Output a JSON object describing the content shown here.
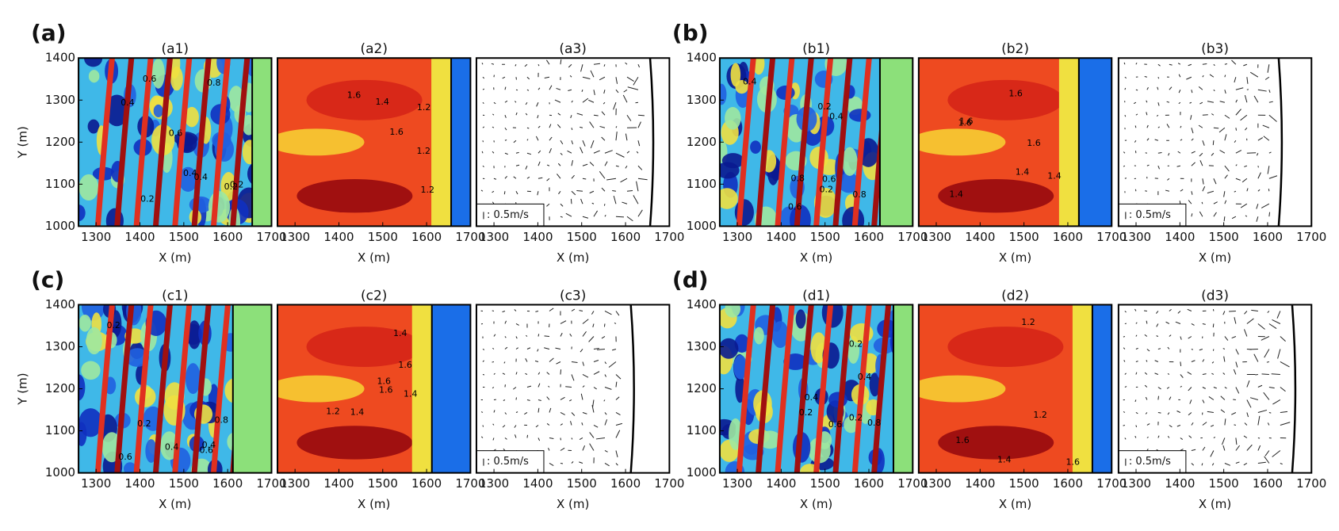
{
  "chart_data": [
    {
      "type": "heatmap",
      "group_label": "(a)",
      "title": "(a1)",
      "xlabel": "X (m)",
      "ylabel": "Y (m)",
      "xlim": [
        1260,
        1700
      ],
      "ylim": [
        1000,
        1400
      ],
      "xticks": [
        1300,
        1400,
        1500,
        1600,
        1700
      ],
      "yticks": [
        1000,
        1100,
        1200,
        1300,
        1400
      ],
      "contour_labels": [
        "0.6",
        "0.2",
        "0.4",
        "0.2",
        "0.4",
        "0.8",
        "0.2",
        "0.4",
        "0.6"
      ]
    },
    {
      "type": "heatmap2",
      "title": "(a2)",
      "xlabel": "X (m)",
      "xlim": [
        1260,
        1700
      ],
      "ylim": [
        1000,
        1400
      ],
      "xticks": [
        1300,
        1400,
        1500,
        1600,
        1700
      ],
      "contour_labels": [
        "1.2",
        "1.2",
        "1.6",
        "1.6",
        "1.4",
        "1.2"
      ]
    },
    {
      "type": "quiver",
      "title": "(a3)",
      "xlabel": "X (m)",
      "xlim": [
        1260,
        1700
      ],
      "ylim": [
        1000,
        1400
      ],
      "xticks": [
        1300,
        1400,
        1500,
        1600,
        1700
      ],
      "scale_label": ": 0.5m/s"
    },
    {
      "type": "heatmap",
      "group_label": "(b)",
      "title": "(b1)",
      "xlabel": "X (m)",
      "xlim": [
        1260,
        1700
      ],
      "ylim": [
        1000,
        1400
      ],
      "xticks": [
        1300,
        1400,
        1500,
        1600,
        1700
      ],
      "yticks": [
        1000,
        1100,
        1200,
        1300,
        1400
      ],
      "contour_labels": [
        "0.8",
        "0.2",
        "0.4",
        "0.6",
        "0.2",
        "0.8",
        "0.4",
        "0.6"
      ]
    },
    {
      "type": "heatmap2",
      "title": "(b2)",
      "xlabel": "X (m)",
      "xlim": [
        1260,
        1700
      ],
      "ylim": [
        1000,
        1400
      ],
      "xticks": [
        1300,
        1400,
        1500,
        1600,
        1700
      ],
      "contour_labels": [
        "1.6",
        "1.4",
        "1.6",
        "1.4",
        "1.6",
        "1.4",
        "1.6"
      ]
    },
    {
      "type": "quiver",
      "title": "(b3)",
      "xlabel": "X (m)",
      "xlim": [
        1260,
        1700
      ],
      "ylim": [
        1000,
        1400
      ],
      "xticks": [
        1300,
        1400,
        1500,
        1600,
        1700
      ],
      "scale_label": ": 0.5m/s"
    },
    {
      "type": "heatmap",
      "group_label": "(c)",
      "title": "(c1)",
      "xlabel": "X (m)",
      "ylabel": "Y (m)",
      "xlim": [
        1260,
        1700
      ],
      "ylim": [
        1000,
        1400
      ],
      "xticks": [
        1300,
        1400,
        1500,
        1600,
        1700
      ],
      "yticks": [
        1000,
        1100,
        1200,
        1300,
        1400
      ],
      "contour_labels": [
        "0.2",
        "0.6",
        "0.4",
        "0.2",
        "0.8",
        "0.6",
        "0.4"
      ]
    },
    {
      "type": "heatmap2",
      "title": "(c2)",
      "xlabel": "X (m)",
      "xlim": [
        1260,
        1700
      ],
      "ylim": [
        1000,
        1400
      ],
      "xticks": [
        1300,
        1400,
        1500,
        1600,
        1700
      ],
      "contour_labels": [
        "1.4",
        "1.4",
        "1.6",
        "1.4",
        "1.6",
        "1.2",
        "1.6"
      ]
    },
    {
      "type": "quiver",
      "title": "(c3)",
      "xlabel": "X (m)",
      "xlim": [
        1260,
        1700
      ],
      "ylim": [
        1000,
        1400
      ],
      "xticks": [
        1300,
        1400,
        1500,
        1600,
        1700
      ],
      "scale_label": ": 0.5m/s"
    },
    {
      "type": "heatmap",
      "group_label": "(d)",
      "title": "(d1)",
      "xlabel": "X (m)",
      "xlim": [
        1260,
        1700
      ],
      "ylim": [
        1000,
        1400
      ],
      "xticks": [
        1300,
        1400,
        1500,
        1600,
        1700
      ],
      "yticks": [
        1000,
        1100,
        1200,
        1300,
        1400
      ],
      "contour_labels": [
        "0.2",
        "0.4",
        "0.6",
        "0.2",
        "0.8",
        "0.4",
        "0.2"
      ]
    },
    {
      "type": "heatmap2",
      "title": "(d2)",
      "xlabel": "X (m)",
      "xlim": [
        1260,
        1700
      ],
      "ylim": [
        1000,
        1400
      ],
      "xticks": [
        1300,
        1400,
        1500,
        1600,
        1700
      ],
      "contour_labels": [
        "1.4",
        "1.2",
        "1.6",
        "1.6",
        "1.2"
      ]
    },
    {
      "type": "quiver",
      "title": "(d3)",
      "xlabel": "X (m)",
      "xlim": [
        1260,
        1700
      ],
      "ylim": [
        1000,
        1400
      ],
      "xticks": [
        1300,
        1400,
        1500,
        1600,
        1700
      ],
      "scale_label": ": 0.5m/s"
    }
  ]
}
